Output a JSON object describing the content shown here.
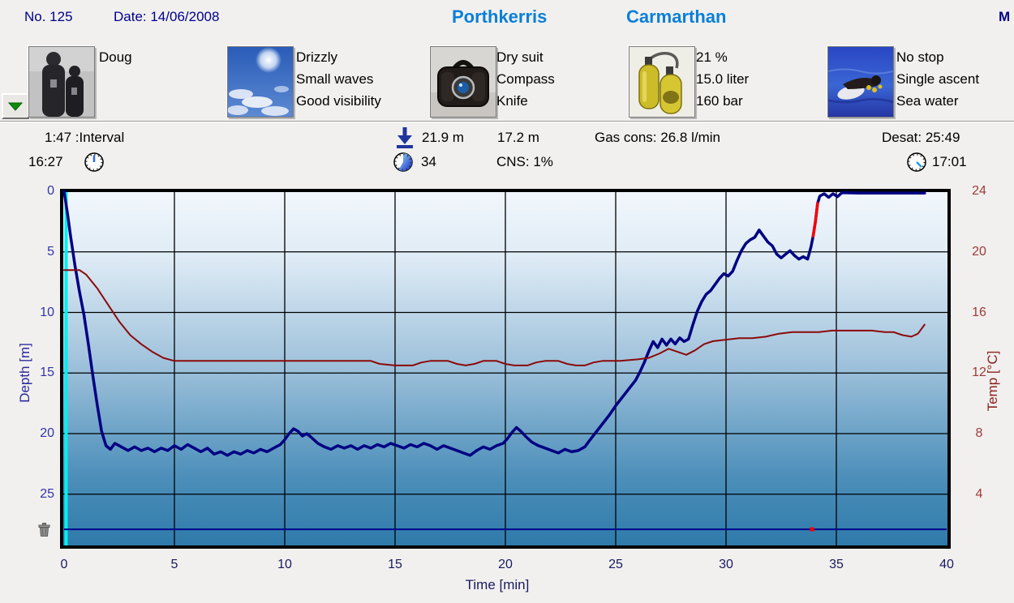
{
  "header": {
    "dive_no": "No. 125",
    "date_label": "Date: 14/06/2008",
    "site": "Porthkerris",
    "location": "Carmarthan",
    "right_label": "M"
  },
  "panels": {
    "buddy": {
      "name": "Doug"
    },
    "weather": {
      "lines": [
        "Drizzly",
        "Small waves",
        "Good visibility"
      ]
    },
    "equipment": {
      "lines": [
        "Dry suit",
        "Compass",
        "Knife"
      ]
    },
    "tank": {
      "lines": [
        "21 %",
        "15.0 liter",
        "160 bar"
      ]
    },
    "dive_type": {
      "lines": [
        "No stop",
        "Single ascent",
        "Sea water"
      ]
    }
  },
  "stats": {
    "interval": "1:47 :Interval",
    "entry_time": "16:27",
    "max_depth": "21.9 m",
    "avg_depth": "17.2 m",
    "dive_time_min": "34",
    "cns": "CNS: 1%",
    "gas_consumption": "Gas cons: 26.8 l/min",
    "desat": "Desat: 25:49",
    "exit_time": "17:01"
  },
  "colors": {
    "accent_blue": "#0a7fd8",
    "navy": "#00008b",
    "depth_line": "#000082",
    "temp_line": "#8b0a0a",
    "warning_red": "#f80000",
    "start_marker_cyan": "#00f0f0"
  },
  "chart_data": {
    "type": "line",
    "xlabel": "Time [min]",
    "ylabel_left": "Depth [m]",
    "ylabel_right": "Temp [°C]",
    "x_range": [
      0,
      40
    ],
    "x_ticks": [
      0,
      5,
      10,
      15,
      20,
      25,
      30,
      35,
      40
    ],
    "depth_ticks": [
      0,
      5,
      10,
      15,
      20,
      25
    ],
    "temp_ticks": [
      24,
      20,
      16,
      12,
      8,
      4
    ],
    "grid": true,
    "markers": {
      "dive_start_line_x_min": 0,
      "bottom_reference_line_depth_m": 27.9,
      "ascent_violation_dot": [
        33.9,
        27.9
      ]
    },
    "series": [
      {
        "name": "depth_m",
        "axis": "depth",
        "color": "#000082",
        "width": 3.5,
        "points": [
          [
            0,
            0
          ],
          [
            0.15,
            1.8
          ],
          [
            0.3,
            3.8
          ],
          [
            0.5,
            6.2
          ],
          [
            0.7,
            8.3
          ],
          [
            0.9,
            10.2
          ],
          [
            1.1,
            12.6
          ],
          [
            1.3,
            15.2
          ],
          [
            1.5,
            17.6
          ],
          [
            1.7,
            19.8
          ],
          [
            1.9,
            21.0
          ],
          [
            2.1,
            21.3
          ],
          [
            2.3,
            20.8
          ],
          [
            2.6,
            21.1
          ],
          [
            2.9,
            21.4
          ],
          [
            3.2,
            21.1
          ],
          [
            3.5,
            21.4
          ],
          [
            3.8,
            21.2
          ],
          [
            4.1,
            21.5
          ],
          [
            4.4,
            21.2
          ],
          [
            4.7,
            21.4
          ],
          [
            5.0,
            21.0
          ],
          [
            5.3,
            21.3
          ],
          [
            5.6,
            20.9
          ],
          [
            5.9,
            21.2
          ],
          [
            6.2,
            21.5
          ],
          [
            6.5,
            21.2
          ],
          [
            6.8,
            21.7
          ],
          [
            7.1,
            21.5
          ],
          [
            7.4,
            21.8
          ],
          [
            7.7,
            21.5
          ],
          [
            8.0,
            21.7
          ],
          [
            8.3,
            21.4
          ],
          [
            8.6,
            21.6
          ],
          [
            8.9,
            21.3
          ],
          [
            9.2,
            21.5
          ],
          [
            9.5,
            21.2
          ],
          [
            9.8,
            20.9
          ],
          [
            10.0,
            20.5
          ],
          [
            10.2,
            20.0
          ],
          [
            10.4,
            19.6
          ],
          [
            10.6,
            19.8
          ],
          [
            10.8,
            20.2
          ],
          [
            11.0,
            20.0
          ],
          [
            11.2,
            20.3
          ],
          [
            11.5,
            20.8
          ],
          [
            11.8,
            21.1
          ],
          [
            12.1,
            21.3
          ],
          [
            12.4,
            21.0
          ],
          [
            12.7,
            21.2
          ],
          [
            13.0,
            21.0
          ],
          [
            13.3,
            21.3
          ],
          [
            13.6,
            21.0
          ],
          [
            13.9,
            21.2
          ],
          [
            14.2,
            20.9
          ],
          [
            14.5,
            21.1
          ],
          [
            14.8,
            20.8
          ],
          [
            15.1,
            21.0
          ],
          [
            15.4,
            21.2
          ],
          [
            15.7,
            20.9
          ],
          [
            16.0,
            21.1
          ],
          [
            16.3,
            20.8
          ],
          [
            16.6,
            21.0
          ],
          [
            16.9,
            21.3
          ],
          [
            17.2,
            21.0
          ],
          [
            17.5,
            21.2
          ],
          [
            17.8,
            21.4
          ],
          [
            18.1,
            21.6
          ],
          [
            18.4,
            21.8
          ],
          [
            18.7,
            21.4
          ],
          [
            19.0,
            21.1
          ],
          [
            19.3,
            21.3
          ],
          [
            19.6,
            21.0
          ],
          [
            19.9,
            20.8
          ],
          [
            20.1,
            20.4
          ],
          [
            20.3,
            19.9
          ],
          [
            20.5,
            19.5
          ],
          [
            20.7,
            19.8
          ],
          [
            20.9,
            20.2
          ],
          [
            21.2,
            20.7
          ],
          [
            21.5,
            21.0
          ],
          [
            21.8,
            21.2
          ],
          [
            22.1,
            21.4
          ],
          [
            22.4,
            21.6
          ],
          [
            22.7,
            21.3
          ],
          [
            23.0,
            21.5
          ],
          [
            23.3,
            21.4
          ],
          [
            23.6,
            21.1
          ],
          [
            23.8,
            20.6
          ],
          [
            24.1,
            19.9
          ],
          [
            24.4,
            19.2
          ],
          [
            24.7,
            18.5
          ],
          [
            25.0,
            17.7
          ],
          [
            25.3,
            17.0
          ],
          [
            25.6,
            16.3
          ],
          [
            25.9,
            15.6
          ],
          [
            26.1,
            14.9
          ],
          [
            26.3,
            14.1
          ],
          [
            26.5,
            13.2
          ],
          [
            26.7,
            12.4
          ],
          [
            26.9,
            12.9
          ],
          [
            27.1,
            12.2
          ],
          [
            27.3,
            12.7
          ],
          [
            27.5,
            12.2
          ],
          [
            27.7,
            12.6
          ],
          [
            27.9,
            12.1
          ],
          [
            28.1,
            12.4
          ],
          [
            28.3,
            12.2
          ],
          [
            28.5,
            11.0
          ],
          [
            28.7,
            9.9
          ],
          [
            28.9,
            9.1
          ],
          [
            29.1,
            8.5
          ],
          [
            29.3,
            8.2
          ],
          [
            29.5,
            7.7
          ],
          [
            29.7,
            7.2
          ],
          [
            29.9,
            6.8
          ],
          [
            30.1,
            7.0
          ],
          [
            30.3,
            6.6
          ],
          [
            30.5,
            5.7
          ],
          [
            30.7,
            4.9
          ],
          [
            30.9,
            4.3
          ],
          [
            31.1,
            4.0
          ],
          [
            31.3,
            3.8
          ],
          [
            31.5,
            3.2
          ],
          [
            31.7,
            3.7
          ],
          [
            31.9,
            4.2
          ],
          [
            32.1,
            4.5
          ],
          [
            32.3,
            5.2
          ],
          [
            32.5,
            5.5
          ],
          [
            32.7,
            5.2
          ],
          [
            32.9,
            4.9
          ],
          [
            33.1,
            5.3
          ],
          [
            33.3,
            5.6
          ],
          [
            33.5,
            5.4
          ],
          [
            33.7,
            5.6
          ],
          [
            33.85,
            4.6
          ],
          [
            33.95,
            3.7
          ],
          [
            34.05,
            2.5
          ],
          [
            34.15,
            1.0
          ],
          [
            34.25,
            0.4
          ],
          [
            34.45,
            0.2
          ],
          [
            34.65,
            0.5
          ],
          [
            34.85,
            0.2
          ],
          [
            35.05,
            0.45
          ],
          [
            35.25,
            0.12
          ],
          [
            36.0,
            0.15
          ],
          [
            37.0,
            0.15
          ],
          [
            38.0,
            0.15
          ],
          [
            39.0,
            0.15
          ]
        ]
      },
      {
        "name": "ascent_warning_m",
        "axis": "depth",
        "color": "#f80000",
        "width": 3.5,
        "points": [
          [
            33.95,
            3.7
          ],
          [
            34.05,
            2.5
          ],
          [
            34.15,
            1.0
          ]
        ]
      },
      {
        "name": "temp_c",
        "axis": "temp",
        "color": "#8b0a0a",
        "width": 2,
        "points": [
          [
            0,
            18.8
          ],
          [
            0.7,
            18.8
          ],
          [
            1.0,
            18.5
          ],
          [
            1.5,
            17.6
          ],
          [
            2.0,
            16.5
          ],
          [
            2.5,
            15.4
          ],
          [
            3.0,
            14.5
          ],
          [
            3.5,
            13.9
          ],
          [
            4.0,
            13.4
          ],
          [
            4.5,
            13.0
          ],
          [
            5.0,
            12.8
          ],
          [
            6.0,
            12.8
          ],
          [
            7.0,
            12.8
          ],
          [
            8.0,
            12.8
          ],
          [
            9.0,
            12.8
          ],
          [
            10.0,
            12.8
          ],
          [
            11.0,
            12.8
          ],
          [
            12.0,
            12.8
          ],
          [
            13.0,
            12.8
          ],
          [
            13.9,
            12.8
          ],
          [
            14.3,
            12.6
          ],
          [
            15.0,
            12.5
          ],
          [
            15.8,
            12.5
          ],
          [
            16.2,
            12.7
          ],
          [
            16.6,
            12.8
          ],
          [
            17.4,
            12.8
          ],
          [
            17.8,
            12.6
          ],
          [
            18.2,
            12.5
          ],
          [
            18.6,
            12.6
          ],
          [
            19.0,
            12.8
          ],
          [
            19.6,
            12.8
          ],
          [
            20.0,
            12.6
          ],
          [
            20.4,
            12.5
          ],
          [
            21.0,
            12.5
          ],
          [
            21.4,
            12.7
          ],
          [
            21.8,
            12.8
          ],
          [
            22.4,
            12.8
          ],
          [
            22.8,
            12.6
          ],
          [
            23.2,
            12.5
          ],
          [
            23.6,
            12.5
          ],
          [
            24.0,
            12.7
          ],
          [
            24.4,
            12.8
          ],
          [
            25.2,
            12.8
          ],
          [
            26.0,
            12.9
          ],
          [
            26.5,
            13.0
          ],
          [
            27.0,
            13.3
          ],
          [
            27.4,
            13.6
          ],
          [
            27.8,
            13.4
          ],
          [
            28.2,
            13.2
          ],
          [
            28.6,
            13.5
          ],
          [
            29.0,
            13.9
          ],
          [
            29.4,
            14.1
          ],
          [
            30.0,
            14.2
          ],
          [
            30.6,
            14.3
          ],
          [
            31.2,
            14.3
          ],
          [
            31.8,
            14.4
          ],
          [
            32.4,
            14.6
          ],
          [
            33.0,
            14.7
          ],
          [
            33.6,
            14.7
          ],
          [
            34.2,
            14.7
          ],
          [
            34.8,
            14.8
          ],
          [
            35.4,
            14.8
          ],
          [
            36.0,
            14.8
          ],
          [
            36.6,
            14.8
          ],
          [
            37.2,
            14.7
          ],
          [
            37.6,
            14.7
          ],
          [
            38.0,
            14.5
          ],
          [
            38.4,
            14.4
          ],
          [
            38.7,
            14.6
          ],
          [
            39.0,
            15.2
          ]
        ]
      }
    ]
  }
}
